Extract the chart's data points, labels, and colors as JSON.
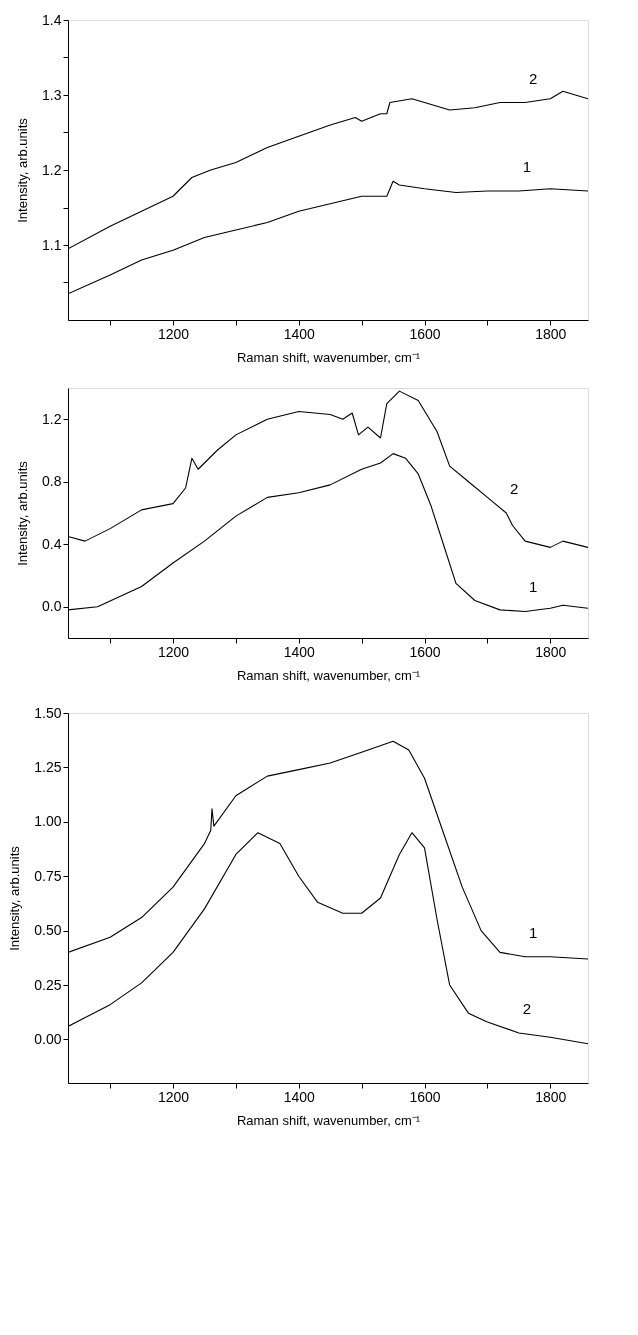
{
  "chart_data": [
    {
      "type": "line",
      "xlabel": "Raman shift, wavenumber, cm⁻¹",
      "ylabel": "Intensity, arb.units",
      "grid": false,
      "marker": "none",
      "line_style": "solid",
      "xlim": [
        1033,
        1860
      ],
      "xticks": [
        {
          "value": 1100,
          "label": null
        },
        1200,
        {
          "value": 1300,
          "label": null
        },
        1400,
        {
          "value": 1500,
          "label": null
        },
        1600,
        {
          "value": 1700,
          "label": null
        },
        1800
      ],
      "ylim": [
        1.0,
        1.4
      ],
      "yticks": [
        {
          "value": 1.05,
          "label": null
        },
        1.1,
        {
          "value": 1.15,
          "label": null
        },
        1.2,
        {
          "value": 1.25,
          "label": null
        },
        1.3,
        {
          "value": 1.35,
          "label": null
        },
        1.4
      ],
      "series": [
        {
          "color": "#000000",
          "x": [
            1033,
            1100,
            1150,
            1200,
            1250,
            1300,
            1350,
            1400,
            1450,
            1500,
            1540,
            1550,
            1560,
            1600,
            1650,
            1700,
            1750,
            1800,
            1860
          ],
          "values": [
            1.035,
            1.06,
            1.08,
            1.093,
            1.11,
            1.12,
            1.13,
            1.145,
            1.155,
            1.165,
            1.165,
            1.185,
            1.18,
            1.175,
            1.17,
            1.172,
            1.172,
            1.175,
            1.172
          ]
        },
        {
          "color": "#000000",
          "x": [
            1033,
            1100,
            1150,
            1200,
            1230,
            1260,
            1300,
            1350,
            1400,
            1450,
            1490,
            1500,
            1530,
            1540,
            1545,
            1580,
            1600,
            1640,
            1680,
            1720,
            1760,
            1800,
            1820,
            1860
          ],
          "values": [
            1.095,
            1.125,
            1.145,
            1.165,
            1.19,
            1.2,
            1.21,
            1.23,
            1.245,
            1.26,
            1.27,
            1.265,
            1.275,
            1.275,
            1.29,
            1.295,
            1.29,
            1.28,
            1.283,
            1.29,
            1.29,
            1.295,
            1.305,
            1.295
          ]
        }
      ],
      "annotations": [
        {
          "text": "2",
          "x": 1760,
          "y": 1.29
        },
        {
          "text": "1",
          "x": 1750,
          "y": 1.172
        }
      ]
    },
    {
      "type": "line",
      "xlabel": "Raman shift, wavenumber, cm⁻¹",
      "ylabel": "Intensity, arb.units",
      "grid": false,
      "marker": "none",
      "line_style": "solid",
      "xlim": [
        1033,
        1860
      ],
      "xticks": [
        {
          "value": 1100,
          "label": null
        },
        1200,
        {
          "value": 1300,
          "label": null
        },
        1400,
        {
          "value": 1500,
          "label": null
        },
        1600,
        {
          "value": 1700,
          "label": null
        },
        1800
      ],
      "ylim": [
        -0.2,
        1.4
      ],
      "yticks": [
        {
          "value": 0,
          "label": "0.0"
        },
        0.4,
        0.8,
        1.2
      ],
      "series": [
        {
          "color": "#000000",
          "x": [
            1033,
            1080,
            1150,
            1200,
            1250,
            1300,
            1350,
            1400,
            1450,
            1500,
            1530,
            1550,
            1570,
            1590,
            1610,
            1630,
            1650,
            1680,
            1720,
            1760,
            1800,
            1820,
            1860
          ],
          "values": [
            -0.02,
            0.0,
            0.13,
            0.28,
            0.42,
            0.58,
            0.7,
            0.73,
            0.78,
            0.88,
            0.92,
            0.98,
            0.95,
            0.85,
            0.65,
            0.4,
            0.15,
            0.04,
            -0.02,
            -0.03,
            -0.01,
            0.01,
            -0.01
          ]
        },
        {
          "color": "#000000",
          "x": [
            1033,
            1060,
            1100,
            1150,
            1200,
            1220,
            1230,
            1240,
            1270,
            1300,
            1350,
            1400,
            1450,
            1470,
            1485,
            1495,
            1510,
            1530,
            1540,
            1560,
            1590,
            1620,
            1640,
            1670,
            1700,
            1730,
            1740,
            1760,
            1800,
            1820,
            1860
          ],
          "values": [
            0.45,
            0.42,
            0.5,
            0.62,
            0.66,
            0.76,
            0.95,
            0.88,
            1.0,
            1.1,
            1.2,
            1.25,
            1.23,
            1.2,
            1.24,
            1.1,
            1.15,
            1.08,
            1.3,
            1.38,
            1.32,
            1.12,
            0.9,
            0.8,
            0.7,
            0.6,
            0.52,
            0.42,
            0.38,
            0.42,
            0.38
          ]
        }
      ],
      "annotations": [
        {
          "text": "2",
          "x": 1730,
          "y": 0.6
        },
        {
          "text": "1",
          "x": 1760,
          "y": -0.03
        }
      ]
    },
    {
      "type": "line",
      "xlabel": "Raman shift, wavenumber, cm⁻¹",
      "ylabel": "Intensity, arb.units",
      "grid": false,
      "marker": "none",
      "line_style": "solid",
      "xlim": [
        1033,
        1860
      ],
      "xticks": [
        {
          "value": 1100,
          "label": null
        },
        1200,
        {
          "value": 1300,
          "label": null
        },
        1400,
        {
          "value": 1500,
          "label": null
        },
        1600,
        {
          "value": 1700,
          "label": null
        },
        1800
      ],
      "ylim": [
        -0.2,
        1.5
      ],
      "yticks": [
        {
          "value": 0,
          "label": "0.00"
        },
        0.25,
        {
          "value": 0.5,
          "label": "0.50"
        },
        0.75,
        {
          "value": 1.0,
          "label": "1.00"
        },
        1.25,
        {
          "value": 1.5,
          "label": "1.50"
        }
      ],
      "series": [
        {
          "color": "#000000",
          "x": [
            1033,
            1100,
            1150,
            1200,
            1250,
            1260,
            1262,
            1265,
            1300,
            1350,
            1400,
            1450,
            1500,
            1550,
            1575,
            1600,
            1630,
            1660,
            1690,
            1720,
            1760,
            1800,
            1860
          ],
          "values": [
            0.4,
            0.47,
            0.56,
            0.7,
            0.9,
            0.96,
            1.06,
            0.98,
            1.12,
            1.21,
            1.24,
            1.27,
            1.32,
            1.37,
            1.33,
            1.2,
            0.95,
            0.7,
            0.5,
            0.4,
            0.38,
            0.38,
            0.37
          ]
        },
        {
          "color": "#000000",
          "x": [
            1033,
            1100,
            1150,
            1200,
            1250,
            1300,
            1335,
            1370,
            1400,
            1430,
            1470,
            1500,
            1530,
            1560,
            1580,
            1600,
            1620,
            1640,
            1670,
            1700,
            1750,
            1800,
            1860
          ],
          "values": [
            0.06,
            0.16,
            0.26,
            0.4,
            0.6,
            0.85,
            0.95,
            0.9,
            0.75,
            0.63,
            0.58,
            0.58,
            0.65,
            0.85,
            0.95,
            0.88,
            0.55,
            0.25,
            0.12,
            0.08,
            0.03,
            0.01,
            -0.02
          ]
        }
      ],
      "annotations": [
        {
          "text": "1",
          "x": 1760,
          "y": 0.38
        },
        {
          "text": "2",
          "x": 1750,
          "y": 0.03
        }
      ]
    }
  ]
}
